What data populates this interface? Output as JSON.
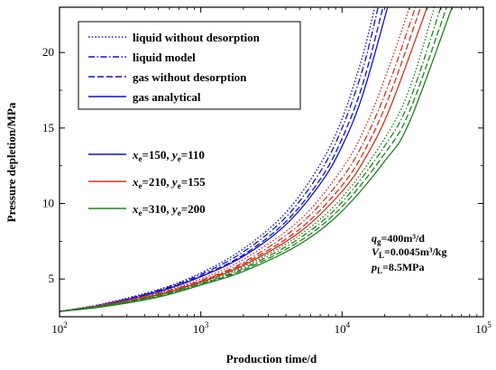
{
  "chart_data": {
    "type": "line",
    "x_scale": "log",
    "xlabel": "Production time/d",
    "ylabel": "Pressure depletion/MPa",
    "xlim": [
      100,
      100000
    ],
    "ylim": [
      2.5,
      23
    ],
    "grid": false,
    "x_ticks": [
      {
        "value": 100,
        "base": "10",
        "exp": "2"
      },
      {
        "value": 1000,
        "base": "10",
        "exp": "3"
      },
      {
        "value": 10000,
        "base": "10",
        "exp": "4"
      },
      {
        "value": 100000,
        "base": "10",
        "exp": "5"
      }
    ],
    "y_ticks": [
      {
        "value": 5,
        "label": "5"
      },
      {
        "value": 10,
        "label": "10"
      },
      {
        "value": 15,
        "label": "15"
      },
      {
        "value": 20,
        "label": "20"
      }
    ],
    "line_style_legend": [
      {
        "label": "liquid without desorption",
        "style": "dotted"
      },
      {
        "label": "liquid model",
        "style": "dashdot"
      },
      {
        "label": "gas without desorption",
        "style": "dashed"
      },
      {
        "label": "gas analytical",
        "style": "solid"
      }
    ],
    "case_legend": [
      {
        "color": "#1010c8",
        "xe": "150",
        "ye": "110"
      },
      {
        "color": "#d03020",
        "xe": "210",
        "ye": "155"
      },
      {
        "color": "#208020",
        "xe": "310",
        "ye": "200"
      }
    ],
    "parameters": {
      "qg": "400m³/d",
      "VL": "0.0045m³/kg",
      "pL": "8.5MPa"
    },
    "series": [
      {
        "color": "#1010c8",
        "style": "dotted",
        "x": [
          100,
          200,
          500,
          1000,
          2000,
          4000,
          7000,
          10000,
          14000,
          17000
        ],
        "y": [
          2.85,
          3.35,
          4.3,
          5.4,
          7.0,
          9.4,
          12.6,
          15.6,
          19.8,
          23.0
        ]
      },
      {
        "color": "#1010c8",
        "style": "dashdot",
        "x": [
          100,
          200,
          500,
          1000,
          2000,
          4000,
          7000,
          10000,
          14000,
          18000
        ],
        "y": [
          2.85,
          3.3,
          4.25,
          5.3,
          6.8,
          9.1,
          12.1,
          15.0,
          18.9,
          23.0
        ]
      },
      {
        "color": "#1010c8",
        "style": "dashed",
        "x": [
          100,
          200,
          500,
          1000,
          2000,
          4000,
          7000,
          10000,
          14000,
          19500
        ],
        "y": [
          2.85,
          3.3,
          4.2,
          5.2,
          6.6,
          8.8,
          11.6,
          14.3,
          17.9,
          23.0
        ]
      },
      {
        "color": "#1010c8",
        "style": "solid",
        "x": [
          100,
          200,
          500,
          1000,
          2000,
          4000,
          7000,
          10000,
          14000,
          21000
        ],
        "y": [
          2.85,
          3.25,
          4.15,
          5.15,
          6.5,
          8.6,
          11.3,
          13.8,
          17.2,
          23.0
        ]
      },
      {
        "color": "#d03020",
        "style": "dotted",
        "x": [
          100,
          200,
          500,
          1000,
          2000,
          5000,
          10000,
          15000,
          22000,
          30000
        ],
        "y": [
          2.85,
          3.3,
          4.1,
          5.0,
          6.3,
          8.9,
          12.3,
          15.3,
          19.3,
          23.0
        ]
      },
      {
        "color": "#d03020",
        "style": "dashdot",
        "x": [
          100,
          200,
          500,
          1000,
          2000,
          5000,
          10000,
          15000,
          22000,
          33000
        ],
        "y": [
          2.85,
          3.25,
          4.05,
          4.9,
          6.1,
          8.6,
          11.7,
          14.5,
          18.2,
          23.0
        ]
      },
      {
        "color": "#d03020",
        "style": "dashed",
        "x": [
          100,
          200,
          500,
          1000,
          2000,
          5000,
          10000,
          15000,
          22000,
          36000
        ],
        "y": [
          2.85,
          3.25,
          4.0,
          4.85,
          6.0,
          8.3,
          11.2,
          13.8,
          17.3,
          23.0
        ]
      },
      {
        "color": "#d03020",
        "style": "solid",
        "x": [
          100,
          200,
          500,
          1000,
          2000,
          5000,
          10000,
          15000,
          22000,
          40000
        ],
        "y": [
          2.85,
          3.2,
          3.95,
          4.8,
          5.9,
          8.1,
          10.8,
          13.2,
          16.4,
          23.0
        ]
      },
      {
        "color": "#208020",
        "style": "dotted",
        "x": [
          100,
          200,
          500,
          1000,
          2000,
          5000,
          10000,
          20000,
          30000,
          45000
        ],
        "y": [
          2.85,
          3.25,
          3.95,
          4.75,
          5.8,
          7.9,
          10.4,
          14.3,
          17.6,
          23.0
        ]
      },
      {
        "color": "#208020",
        "style": "dashdot",
        "x": [
          100,
          200,
          500,
          1000,
          2000,
          5000,
          10000,
          20000,
          30000,
          50000
        ],
        "y": [
          2.85,
          3.2,
          3.9,
          4.7,
          5.7,
          7.7,
          10.1,
          13.8,
          16.8,
          23.0
        ]
      },
      {
        "color": "#208020",
        "style": "dashed",
        "x": [
          100,
          200,
          500,
          1000,
          2000,
          5000,
          10000,
          20000,
          30000,
          55000
        ],
        "y": [
          2.85,
          3.2,
          3.85,
          4.65,
          5.6,
          7.5,
          9.8,
          13.3,
          16.1,
          23.0
        ]
      },
      {
        "color": "#208020",
        "style": "solid",
        "x": [
          100,
          200,
          500,
          1000,
          2000,
          5000,
          10000,
          20000,
          30000,
          60000
        ],
        "y": [
          2.85,
          3.15,
          3.8,
          4.6,
          5.5,
          7.3,
          9.5,
          12.8,
          15.4,
          23.0
        ]
      }
    ]
  }
}
